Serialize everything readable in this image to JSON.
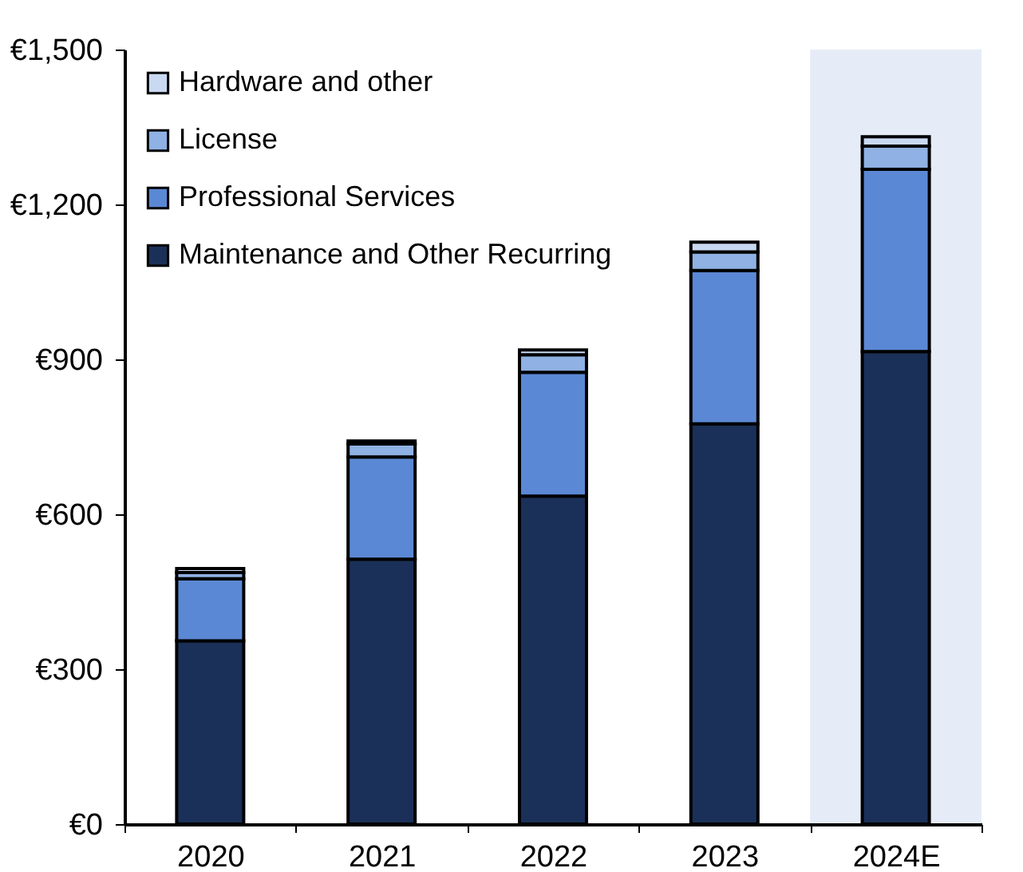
{
  "chart_data": {
    "type": "bar",
    "stacked": true,
    "categories": [
      "2020",
      "2021",
      "2022",
      "2023",
      "2024E"
    ],
    "series": [
      {
        "name": "Maintenance and Other Recurring",
        "color": "#1b3058",
        "values": [
          355,
          513,
          635,
          775,
          915
        ]
      },
      {
        "name": "Professional Services",
        "color": "#5b88d4",
        "values": [
          120,
          198,
          240,
          297,
          353
        ]
      },
      {
        "name": "License",
        "color": "#8fb1e3",
        "values": [
          12,
          25,
          34,
          36,
          45
        ]
      },
      {
        "name": "Hardware and other",
        "color": "#c9d9f2",
        "values": [
          8,
          6,
          9,
          19,
          18
        ]
      }
    ],
    "ylim": [
      0,
      1500
    ],
    "yticks": [
      {
        "value": 0,
        "label": "€0"
      },
      {
        "value": 300,
        "label": "€300"
      },
      {
        "value": 600,
        "label": "€600"
      },
      {
        "value": 900,
        "label": "€900"
      },
      {
        "value": 1200,
        "label": "€1,200"
      },
      {
        "value": 1500,
        "label": "€1,500"
      }
    ],
    "bands": [
      {
        "axis": "x",
        "from": "2024E",
        "to": "2024E",
        "color": "#e6ecf7"
      }
    ],
    "legend": "top left",
    "grid": false
  }
}
